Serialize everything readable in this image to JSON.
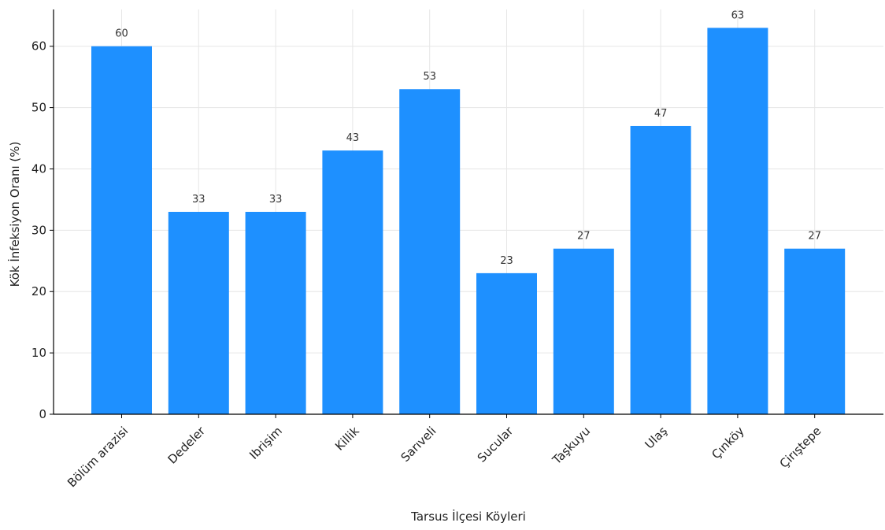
{
  "chart_data": {
    "type": "bar",
    "categories": [
      "Bölüm arazisi",
      "Dedeler",
      "Ibrişim",
      "Killik",
      "Sarıveli",
      "Sucular",
      "Taşkuyu",
      "Ulaş",
      "Çınköy",
      "Çirıştepe"
    ],
    "values": [
      60,
      33,
      33,
      43,
      53,
      23,
      27,
      47,
      63,
      27
    ],
    "value_labels": [
      "60",
      "33",
      "33",
      "43",
      "53",
      "23",
      "27",
      "47",
      "63",
      "27"
    ],
    "title": "",
    "xlabel": "Tarsus İlçesi Köyleri",
    "ylabel": "Kök İnfeksiyon Oranı (%)",
    "ylim": [
      0,
      66
    ],
    "yticks": [
      0,
      10,
      20,
      30,
      40,
      50,
      60
    ],
    "ytick_labels": [
      "0",
      "10",
      "20",
      "30",
      "40",
      "50",
      "60"
    ],
    "bar_color": "#1e90ff",
    "grid": true,
    "legend": "none"
  }
}
